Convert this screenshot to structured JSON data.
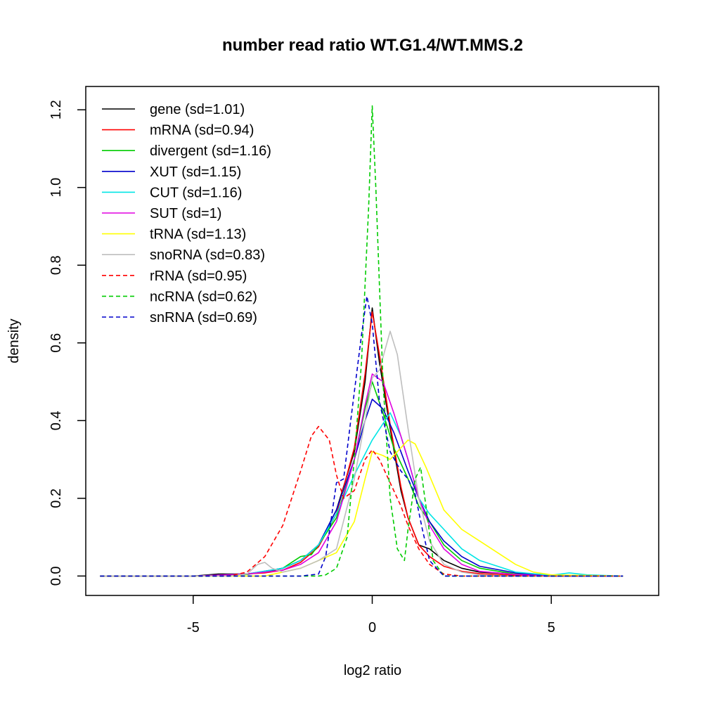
{
  "chart_data": {
    "type": "line",
    "title": "number read ratio WT.G1.4/WT.MMS.2",
    "xlabel": "log2 ratio",
    "ylabel": "density",
    "xlim": [
      -8.0,
      8.0
    ],
    "ylim": [
      -0.05,
      1.26
    ],
    "x_ticks": [
      -5,
      0,
      5
    ],
    "x_tick_labels": [
      "-5",
      "0",
      "5"
    ],
    "y_ticks": [
      0.0,
      0.2,
      0.4,
      0.6,
      0.8,
      1.0,
      1.2
    ],
    "y_tick_labels": [
      "0.0",
      "0.2",
      "0.4",
      "0.6",
      "0.8",
      "1.0",
      "1.2"
    ],
    "grid": false,
    "legend_position": "top-left",
    "series": [
      {
        "name": "gene (sd=1.01)",
        "color": "#000000",
        "dash": "solid",
        "x": [
          -7.6,
          -5,
          -4.3,
          -3.5,
          -3,
          -2.5,
          -2,
          -1.5,
          -1,
          -0.5,
          -0.2,
          0,
          0.2,
          0.5,
          0.8,
          1,
          1.3,
          1.6,
          2,
          2.5,
          3,
          4,
          5,
          7
        ],
        "y": [
          0,
          0,
          0.005,
          0.005,
          0.01,
          0.02,
          0.04,
          0.08,
          0.17,
          0.32,
          0.5,
          0.69,
          0.55,
          0.38,
          0.22,
          0.15,
          0.08,
          0.07,
          0.04,
          0.02,
          0.01,
          0.005,
          0,
          0
        ]
      },
      {
        "name": "mRNA (sd=0.94)",
        "color": "#ff0000",
        "dash": "solid",
        "x": [
          -7.6,
          -5,
          -4,
          -3,
          -2.5,
          -2,
          -1.5,
          -1,
          -0.5,
          -0.2,
          0,
          0.2,
          0.5,
          0.8,
          1,
          1.3,
          1.6,
          2,
          2.5,
          3,
          4,
          5,
          7
        ],
        "y": [
          0,
          0,
          0.003,
          0.008,
          0.015,
          0.035,
          0.075,
          0.16,
          0.33,
          0.52,
          0.68,
          0.57,
          0.39,
          0.23,
          0.15,
          0.08,
          0.05,
          0.025,
          0.012,
          0.006,
          0.002,
          0,
          0
        ]
      },
      {
        "name": "divergent (sd=1.16)",
        "color": "#00cc00",
        "dash": "solid",
        "x": [
          -7.6,
          -5,
          -3.5,
          -2.5,
          -2,
          -1.7,
          -1.5,
          -1,
          -0.5,
          -0.2,
          0,
          0.3,
          0.6,
          1,
          1.3,
          1.6,
          2,
          2.5,
          3,
          4,
          5,
          7
        ],
        "y": [
          0,
          0,
          0.004,
          0.02,
          0.05,
          0.055,
          0.08,
          0.15,
          0.3,
          0.43,
          0.5,
          0.42,
          0.33,
          0.25,
          0.18,
          0.14,
          0.08,
          0.04,
          0.02,
          0.005,
          0,
          0
        ]
      },
      {
        "name": "XUT (sd=1.15)",
        "color": "#0000cc",
        "dash": "solid",
        "x": [
          -7.6,
          -5,
          -3.5,
          -2.5,
          -2,
          -1.5,
          -1,
          -0.5,
          -0.2,
          0,
          0.3,
          0.6,
          1,
          1.3,
          1.6,
          2,
          2.5,
          3,
          4,
          5,
          7
        ],
        "y": [
          0,
          0,
          0.005,
          0.02,
          0.04,
          0.08,
          0.17,
          0.3,
          0.4,
          0.455,
          0.43,
          0.37,
          0.27,
          0.2,
          0.14,
          0.09,
          0.05,
          0.025,
          0.008,
          0,
          0
        ]
      },
      {
        "name": "CUT (sd=1.16)",
        "color": "#00e5e5",
        "dash": "solid",
        "x": [
          -7.6,
          -5,
          -3.5,
          -2.5,
          -2,
          -1.5,
          -1,
          -0.5,
          0,
          0.5,
          0.8,
          1,
          1.3,
          1.6,
          2,
          2.5,
          3,
          4,
          5,
          5.5,
          6,
          7
        ],
        "y": [
          0,
          0,
          0.005,
          0.02,
          0.04,
          0.08,
          0.16,
          0.26,
          0.35,
          0.42,
          0.36,
          0.3,
          0.2,
          0.16,
          0.12,
          0.07,
          0.04,
          0.01,
          0.002,
          0.008,
          0.003,
          0
        ]
      },
      {
        "name": "SUT (sd=1)",
        "color": "#e000e0",
        "dash": "solid",
        "x": [
          -7.6,
          -5,
          -3.5,
          -2.5,
          -2,
          -1.5,
          -1,
          -0.5,
          -0.2,
          0,
          0.3,
          0.6,
          1,
          1.3,
          1.6,
          2,
          2.5,
          3,
          4,
          5,
          7
        ],
        "y": [
          0,
          0,
          0.005,
          0.015,
          0.03,
          0.06,
          0.14,
          0.3,
          0.44,
          0.52,
          0.5,
          0.42,
          0.3,
          0.2,
          0.13,
          0.07,
          0.03,
          0.012,
          0.004,
          0,
          0
        ]
      },
      {
        "name": "tRNA (sd=1.13)",
        "color": "#ffff00",
        "dash": "solid",
        "x": [
          -7.6,
          -5,
          -3,
          -2.5,
          -2,
          -1.5,
          -1,
          -0.5,
          -0.2,
          0,
          0.3,
          0.5,
          0.8,
          1,
          1.2,
          1.5,
          2,
          2.5,
          3,
          3.5,
          4,
          4.5,
          5,
          7
        ],
        "y": [
          0,
          0,
          0,
          0.01,
          0.02,
          0.04,
          0.06,
          0.14,
          0.25,
          0.32,
          0.31,
          0.3,
          0.33,
          0.35,
          0.34,
          0.28,
          0.17,
          0.12,
          0.09,
          0.06,
          0.03,
          0.01,
          0.003,
          0
        ]
      },
      {
        "name": "snoRNA (sd=0.83)",
        "color": "#bebebe",
        "dash": "solid",
        "x": [
          -7.6,
          -4,
          -3.5,
          -3.2,
          -3,
          -2.8,
          -2.5,
          -2,
          -1.5,
          -1,
          -0.5,
          -0.2,
          0,
          0.2,
          0.5,
          0.7,
          1,
          1.3,
          1.6,
          2,
          2.5,
          3,
          4,
          7
        ],
        "y": [
          0,
          0,
          0.005,
          0.03,
          0.035,
          0.02,
          0.01,
          0.02,
          0.04,
          0.07,
          0.25,
          0.4,
          0.51,
          0.53,
          0.63,
          0.57,
          0.38,
          0.2,
          0.09,
          0.03,
          0.01,
          0.003,
          0,
          0
        ]
      },
      {
        "name": "rRNA (sd=0.95)",
        "color": "#ff0000",
        "dash": "dashed",
        "x": [
          -7.6,
          -4,
          -3.5,
          -3,
          -2.5,
          -2,
          -1.7,
          -1.5,
          -1.2,
          -1,
          -0.8,
          -0.5,
          -0.2,
          0,
          0.2,
          0.5,
          0.8,
          1,
          1.3,
          1.6,
          2,
          2.5,
          7
        ],
        "y": [
          0,
          0,
          0.01,
          0.05,
          0.13,
          0.27,
          0.36,
          0.385,
          0.35,
          0.26,
          0.2,
          0.22,
          0.3,
          0.325,
          0.3,
          0.24,
          0.18,
          0.13,
          0.07,
          0.03,
          0.005,
          0,
          0
        ]
      },
      {
        "name": "ncRNA (sd=0.62)",
        "color": "#00cc00",
        "dash": "dashed",
        "x": [
          -7.6,
          -2,
          -1.5,
          -1.3,
          -1,
          -0.7,
          -0.5,
          -0.3,
          -0.1,
          0,
          0.1,
          0.3,
          0.5,
          0.7,
          0.9,
          1,
          1.2,
          1.35,
          1.5,
          1.7,
          2,
          7
        ],
        "y": [
          0,
          0,
          0,
          0.003,
          0.02,
          0.1,
          0.3,
          0.55,
          0.95,
          1.21,
          1.0,
          0.5,
          0.2,
          0.07,
          0.04,
          0.12,
          0.25,
          0.28,
          0.18,
          0.04,
          0,
          0
        ]
      },
      {
        "name": "snRNA (sd=0.69)",
        "color": "#0000cc",
        "dash": "dashed",
        "x": [
          -7.6,
          -2,
          -1.5,
          -1.3,
          -1,
          -0.8,
          -0.6,
          -0.3,
          -0.15,
          0,
          0.2,
          0.5,
          0.8,
          1,
          1.2,
          1.4,
          1.6,
          2,
          7
        ],
        "y": [
          0,
          0,
          0.005,
          0.05,
          0.24,
          0.25,
          0.4,
          0.62,
          0.72,
          0.65,
          0.45,
          0.32,
          0.27,
          0.25,
          0.21,
          0.12,
          0.04,
          0,
          0
        ]
      }
    ]
  }
}
